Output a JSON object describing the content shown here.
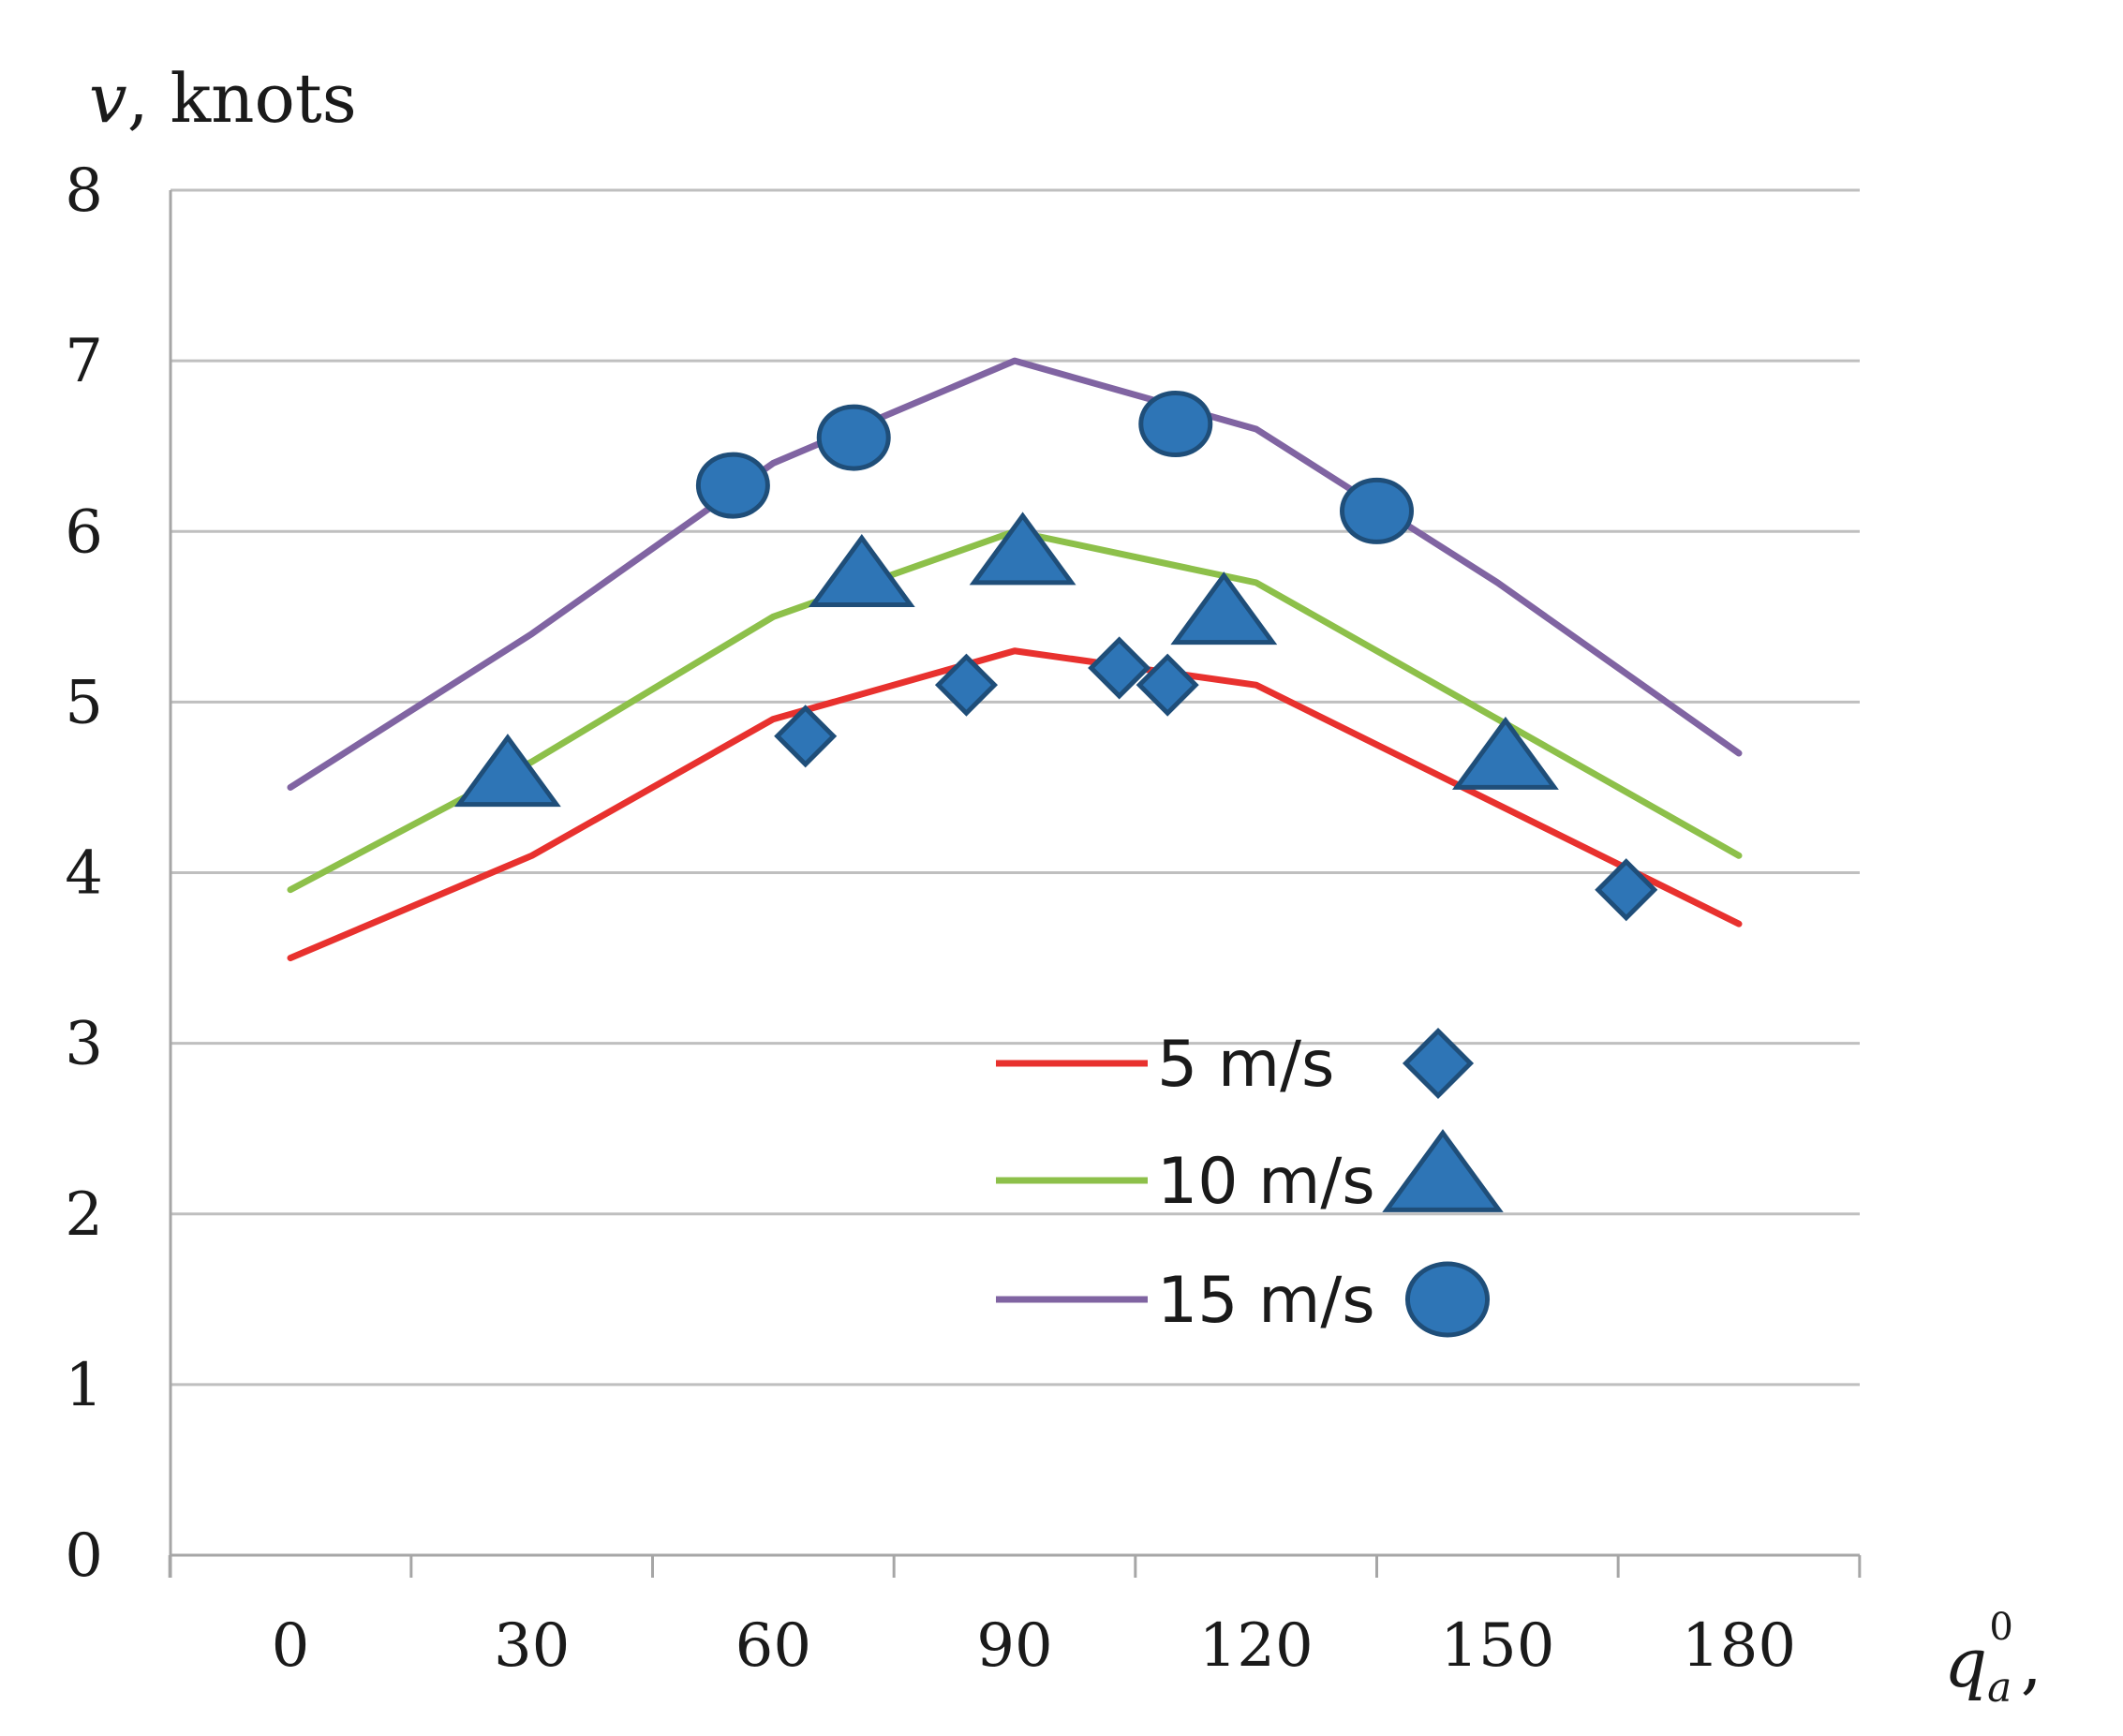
{
  "chart_data": {
    "type": "line",
    "title": "",
    "ylabel": {
      "var": "v",
      "unit": ", knots"
    },
    "xlabel": {
      "var": "q",
      "sub": "a",
      "sup": "0",
      "tail": ","
    },
    "ylim": [
      0,
      8
    ],
    "yticks": [
      "0",
      "1",
      "2",
      "3",
      "4",
      "5",
      "6",
      "7",
      "8"
    ],
    "xticks": [
      "0",
      "30",
      "60",
      "90",
      "120",
      "150",
      "180"
    ],
    "grid": "horizontal",
    "legend_position": "center-right",
    "series": [
      {
        "name": "5 m/s",
        "color": "#e8312e",
        "marker": "diamond",
        "line": [
          [
            0,
            3.5
          ],
          [
            30,
            4.1
          ],
          [
            60,
            4.9
          ],
          [
            90,
            5.3
          ],
          [
            120,
            5.1
          ],
          [
            150,
            4.4
          ],
          [
            180,
            3.7
          ]
        ],
        "points": [
          [
            64,
            4.8
          ],
          [
            84,
            5.1
          ],
          [
            103,
            5.2
          ],
          [
            109,
            5.1
          ],
          [
            166,
            3.9
          ]
        ]
      },
      {
        "name": "10 m/s",
        "color": "#8dc04a",
        "marker": "triangle",
        "line": [
          [
            0,
            3.9
          ],
          [
            30,
            4.65
          ],
          [
            60,
            5.5
          ],
          [
            90,
            6.0
          ],
          [
            120,
            5.7
          ],
          [
            150,
            4.9
          ],
          [
            180,
            4.1
          ]
        ],
        "points": [
          [
            27,
            4.55
          ],
          [
            71,
            5.72
          ],
          [
            91,
            5.85
          ],
          [
            116,
            5.5
          ],
          [
            151,
            4.65
          ]
        ]
      },
      {
        "name": "15 m/s",
        "color": "#8064a2",
        "marker": "circle",
        "line": [
          [
            0,
            4.5
          ],
          [
            30,
            5.4
          ],
          [
            60,
            6.4
          ],
          [
            90,
            7.0
          ],
          [
            120,
            6.6
          ],
          [
            150,
            5.7
          ],
          [
            180,
            4.7
          ]
        ],
        "points": [
          [
            55,
            6.27
          ],
          [
            70,
            6.55
          ],
          [
            110,
            6.63
          ],
          [
            135,
            6.12
          ]
        ]
      }
    ]
  },
  "colors": {
    "marker_fill": "#2e75b6",
    "marker_stroke": "#1f4e79",
    "grid": "#bfbfbf",
    "axis": "#a6a6a6"
  }
}
